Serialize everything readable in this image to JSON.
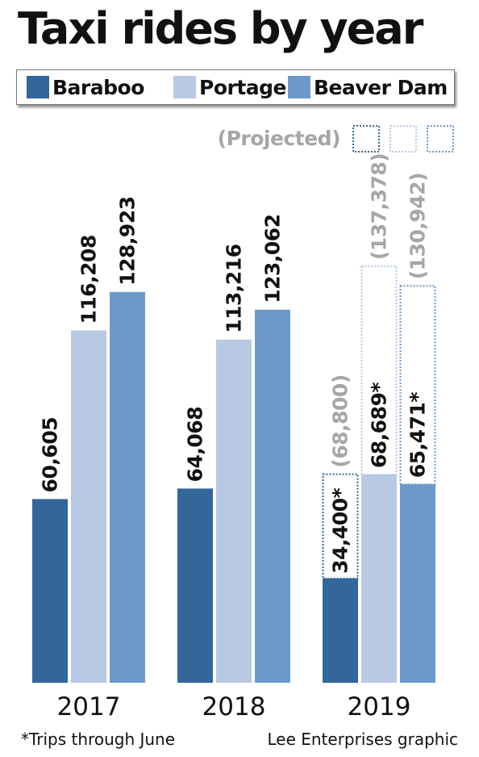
{
  "title": "Taxi rides by year",
  "legend": [
    {
      "label": "Baraboo",
      "color": "#336799"
    },
    {
      "label": "Portage",
      "color": "#b8c9e4"
    },
    {
      "label": "Beaver Dam",
      "color": "#6b9ac8"
    }
  ],
  "projected_label": "(Projected)",
  "footnote_left": "*Trips through June",
  "footnote_right": "Lee Enterprises graphic",
  "colors": {
    "Baraboo": "#336799",
    "Portage": "#b8c9e4",
    "Beaver Dam": "#6b9ac8",
    "projected_text": "#a6a6a6",
    "text": "#111111"
  },
  "chart_data": {
    "type": "bar",
    "title": "Taxi rides by year",
    "xlabel": "",
    "ylabel": "",
    "categories": [
      "2017",
      "2018",
      "2019"
    ],
    "series": [
      {
        "name": "Baraboo",
        "values": [
          60605,
          64068,
          34400
        ],
        "labels": [
          "60,605",
          "64,068",
          "34,400*"
        ],
        "projected": [
          null,
          null,
          68800
        ],
        "projected_labels": [
          null,
          null,
          "(68,800)"
        ]
      },
      {
        "name": "Portage",
        "values": [
          116208,
          113216,
          68689
        ],
        "labels": [
          "116,208",
          "113,216",
          "68,689*"
        ],
        "projected": [
          null,
          null,
          137378
        ],
        "projected_labels": [
          null,
          null,
          "(137,378)"
        ]
      },
      {
        "name": "Beaver Dam",
        "values": [
          128923,
          123062,
          65471
        ],
        "labels": [
          "128,923",
          "123,062",
          "65,471*"
        ],
        "projected": [
          null,
          null,
          130942
        ],
        "projected_labels": [
          null,
          null,
          "(130,942)"
        ]
      }
    ],
    "ylim": [
      0,
      137378
    ],
    "grid": false,
    "legend_position": "top"
  }
}
